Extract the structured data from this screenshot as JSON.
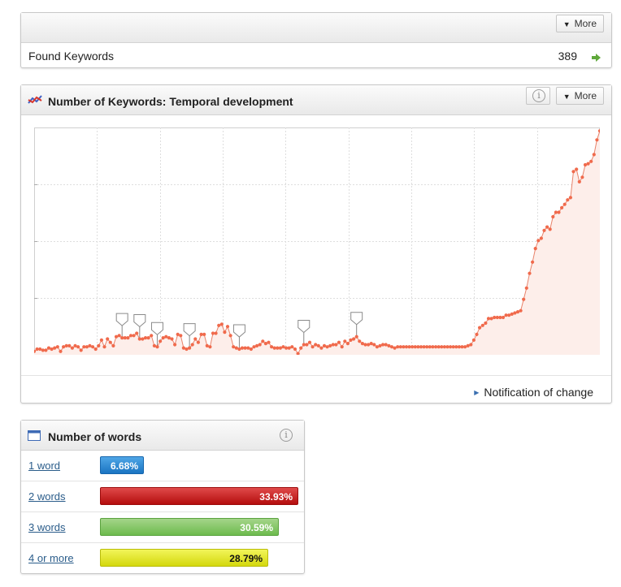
{
  "summary": {
    "more_label": "More",
    "found_keywords_label": "Found Keywords",
    "found_keywords_value": "389"
  },
  "temporal": {
    "title": "Number of Keywords: Temporal development",
    "more_label": "More",
    "notification_label": "Notification of change"
  },
  "chart_data": {
    "type": "area",
    "series": [
      {
        "color": "#f06a4c",
        "values": [
          0,
          2,
          2,
          1,
          1,
          3,
          2,
          3,
          4,
          0,
          4,
          5,
          5,
          3,
          5,
          4,
          1,
          4,
          4,
          5,
          4,
          2,
          5,
          10,
          4,
          11,
          8,
          5,
          13,
          14,
          12,
          12,
          12,
          14,
          14,
          16,
          11,
          11,
          12,
          12,
          14,
          5,
          4,
          9,
          12,
          13,
          12,
          11,
          6,
          15,
          14,
          3,
          2,
          3,
          6,
          11,
          8,
          15,
          15,
          5,
          4,
          16,
          16,
          23,
          24,
          17,
          22,
          14,
          4,
          3,
          2,
          3,
          3,
          3,
          2,
          4,
          5,
          6,
          9,
          7,
          8,
          4,
          3,
          3,
          3,
          4,
          3,
          3,
          4,
          2,
          -2,
          3,
          6,
          6,
          8,
          4,
          6,
          5,
          3,
          5,
          4,
          5,
          6,
          6,
          8,
          4,
          9,
          7,
          10,
          11,
          13,
          9,
          7,
          6,
          6,
          7,
          6,
          4,
          5,
          6,
          6,
          5,
          4,
          3,
          4,
          4,
          4,
          4,
          4,
          4,
          4,
          4,
          4,
          4,
          4,
          4,
          4,
          4,
          4,
          4,
          4,
          4,
          4,
          4,
          4,
          4,
          4,
          4,
          5,
          6,
          10,
          15,
          21,
          23,
          25,
          29,
          29,
          30,
          30,
          30,
          30,
          32,
          32,
          33,
          34,
          35,
          36,
          46,
          56,
          69,
          79,
          91,
          98,
          100,
          107,
          110,
          108,
          119,
          123,
          123,
          127,
          130,
          134,
          136,
          159,
          161,
          150,
          154,
          165,
          166,
          168,
          174,
          187,
          195
        ],
        "markers": [
          30,
          36,
          42,
          53,
          70,
          92,
          110
        ]
      }
    ],
    "ylim": [
      -3,
      198
    ],
    "grid": true,
    "legend": "none"
  },
  "words": {
    "title": "Number of words",
    "items": [
      {
        "label": "1 word",
        "percent": "6.68%",
        "value": 6.68,
        "color": "#1a74c2"
      },
      {
        "label": "2 words",
        "percent": "33.93%",
        "value": 33.93,
        "color": "#b40d0d"
      },
      {
        "label": "3 words",
        "percent": "30.59%",
        "value": 30.59,
        "color": "#6dbb4d"
      },
      {
        "label": "4 or more",
        "percent": "28.79%",
        "value": 28.79,
        "color": "#d4d80d"
      }
    ]
  }
}
